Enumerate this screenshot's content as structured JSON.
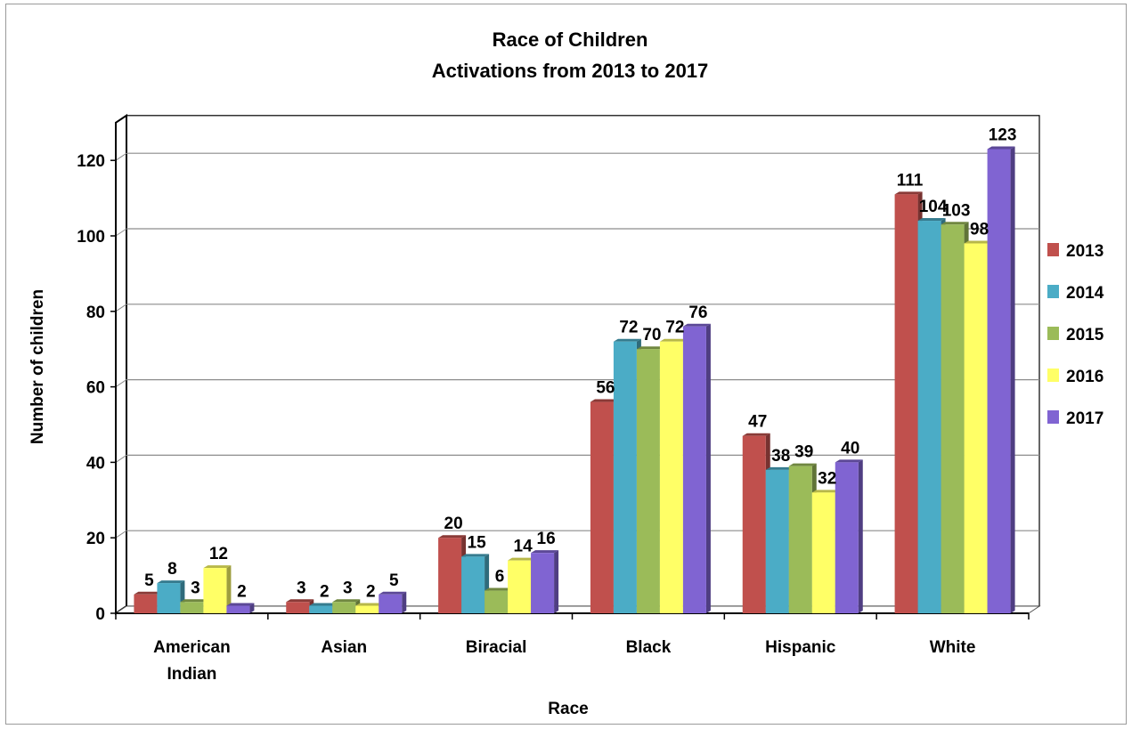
{
  "chart_data": {
    "type": "bar",
    "title": "Race of Children",
    "subtitle": "Activations from 2013 to 2017",
    "xlabel": "Race",
    "ylabel": "Number of children",
    "categories": [
      "American Indian",
      "Asian",
      "Biracial",
      "Black",
      "Hispanic",
      "White"
    ],
    "ylim": [
      0,
      130
    ],
    "yticks": [
      0,
      20,
      40,
      60,
      80,
      100,
      120
    ],
    "grid": true,
    "legend_position": "right",
    "series": [
      {
        "name": "2013",
        "color": "#c0504d",
        "values": [
          5,
          3,
          20,
          56,
          47,
          111
        ]
      },
      {
        "name": "2014",
        "color": "#4bacc6",
        "values": [
          8,
          2,
          15,
          72,
          38,
          104
        ]
      },
      {
        "name": "2015",
        "color": "#9bbb59",
        "values": [
          3,
          3,
          6,
          70,
          39,
          103
        ]
      },
      {
        "name": "2016",
        "color": "#ffff66",
        "values": [
          12,
          2,
          14,
          72,
          32,
          98
        ]
      },
      {
        "name": "2017",
        "color": "#8064d2",
        "values": [
          2,
          5,
          16,
          76,
          40,
          123
        ]
      }
    ]
  }
}
